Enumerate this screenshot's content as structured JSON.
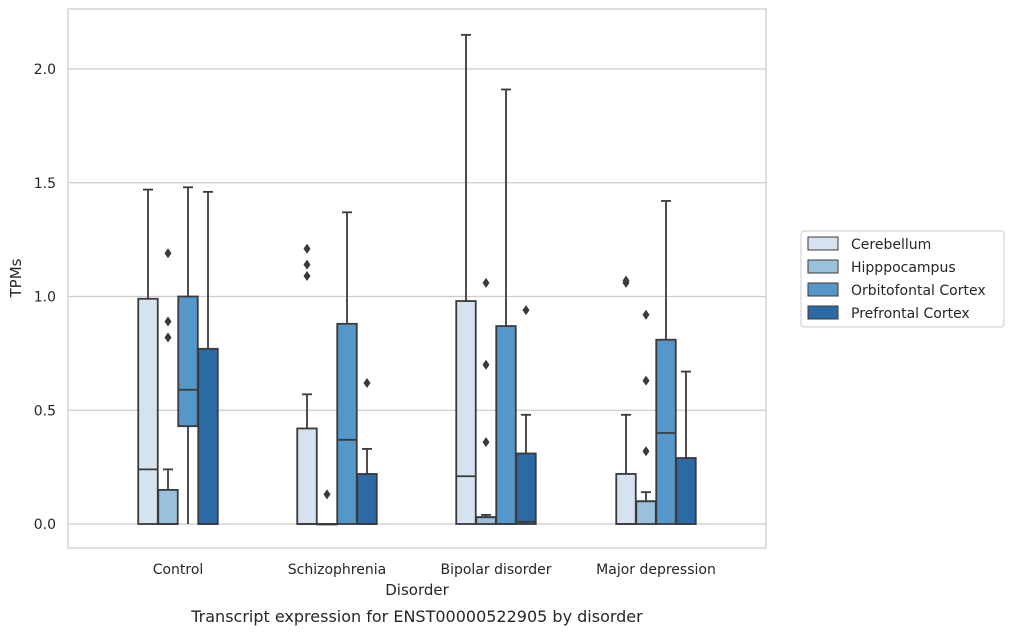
{
  "chart_data": {
    "type": "box",
    "caption": "Transcript expression for ENST00000522905 by disorder",
    "xlabel": "Disorder",
    "ylabel": "TPMs",
    "ylim": [
      -0.1,
      2.27
    ],
    "yticks": [
      0.0,
      0.5,
      1.0,
      1.5,
      2.0
    ],
    "ytick_labels": [
      "0.0",
      "0.5",
      "1.0",
      "1.5",
      "2.0"
    ],
    "grid": "horizontal",
    "legend_position": "right",
    "categories": [
      "Control",
      "Schizophrenia",
      "Bipolar disorder",
      "Major depression"
    ],
    "series": [
      {
        "name": "Cerebellum",
        "color": "#d5e2f0",
        "boxes": [
          {
            "whisker_low": 0.0,
            "q1": 0.0,
            "median": 0.24,
            "q3": 0.99,
            "whisker_high": 1.47,
            "outliers": []
          },
          {
            "whisker_low": 0.0,
            "q1": 0.0,
            "median": 0.0,
            "q3": 0.42,
            "whisker_high": 0.57,
            "outliers": [
              1.09,
              1.14,
              1.21
            ]
          },
          {
            "whisker_low": 0.0,
            "q1": 0.0,
            "median": 0.21,
            "q3": 0.98,
            "whisker_high": 2.15,
            "outliers": []
          },
          {
            "whisker_low": 0.0,
            "q1": 0.0,
            "median": 0.0,
            "q3": 0.22,
            "whisker_high": 0.48,
            "outliers": [
              1.06,
              1.07
            ]
          }
        ]
      },
      {
        "name": "Hipppocampus",
        "color": "#99c1dd",
        "boxes": [
          {
            "whisker_low": 0.0,
            "q1": 0.0,
            "median": 0.0,
            "q3": 0.15,
            "whisker_high": 0.24,
            "outliers": [
              0.82,
              0.89,
              1.19
            ]
          },
          {
            "whisker_low": 0.0,
            "q1": 0.0,
            "median": 0.0,
            "q3": 0.0,
            "whisker_high": 0.0,
            "outliers": [
              0.13
            ]
          },
          {
            "whisker_low": 0.0,
            "q1": 0.0,
            "median": 0.03,
            "q3": 0.03,
            "whisker_high": 0.04,
            "outliers": [
              0.36,
              0.7,
              1.06
            ]
          },
          {
            "whisker_low": 0.0,
            "q1": 0.0,
            "median": 0.1,
            "q3": 0.1,
            "whisker_high": 0.14,
            "outliers": [
              0.32,
              0.63,
              0.92
            ]
          }
        ]
      },
      {
        "name": "Orbitofontal Cortex",
        "color": "#5597c8",
        "boxes": [
          {
            "whisker_low": 0.0,
            "q1": 0.43,
            "median": 0.59,
            "q3": 1.0,
            "whisker_high": 1.48,
            "outliers": []
          },
          {
            "whisker_low": 0.0,
            "q1": 0.0,
            "median": 0.37,
            "q3": 0.88,
            "whisker_high": 1.37,
            "outliers": []
          },
          {
            "whisker_low": 0.0,
            "q1": 0.0,
            "median": 0.0,
            "q3": 0.87,
            "whisker_high": 1.91,
            "outliers": []
          },
          {
            "whisker_low": 0.0,
            "q1": 0.0,
            "median": 0.4,
            "q3": 0.81,
            "whisker_high": 1.42,
            "outliers": []
          }
        ]
      },
      {
        "name": "Prefrontal Cortex",
        "color": "#2c6aa5",
        "boxes": [
          {
            "whisker_low": 0.0,
            "q1": 0.0,
            "median": 0.0,
            "q3": 0.77,
            "whisker_high": 1.46,
            "outliers": []
          },
          {
            "whisker_low": 0.0,
            "q1": 0.0,
            "median": 0.0,
            "q3": 0.22,
            "whisker_high": 0.33,
            "outliers": [
              0.62
            ]
          },
          {
            "whisker_low": 0.0,
            "q1": 0.0,
            "median": 0.01,
            "q3": 0.31,
            "whisker_high": 0.48,
            "outliers": [
              0.94
            ]
          },
          {
            "whisker_low": 0.0,
            "q1": 0.0,
            "median": 0.0,
            "q3": 0.29,
            "whisker_high": 0.67,
            "outliers": []
          }
        ]
      }
    ]
  }
}
